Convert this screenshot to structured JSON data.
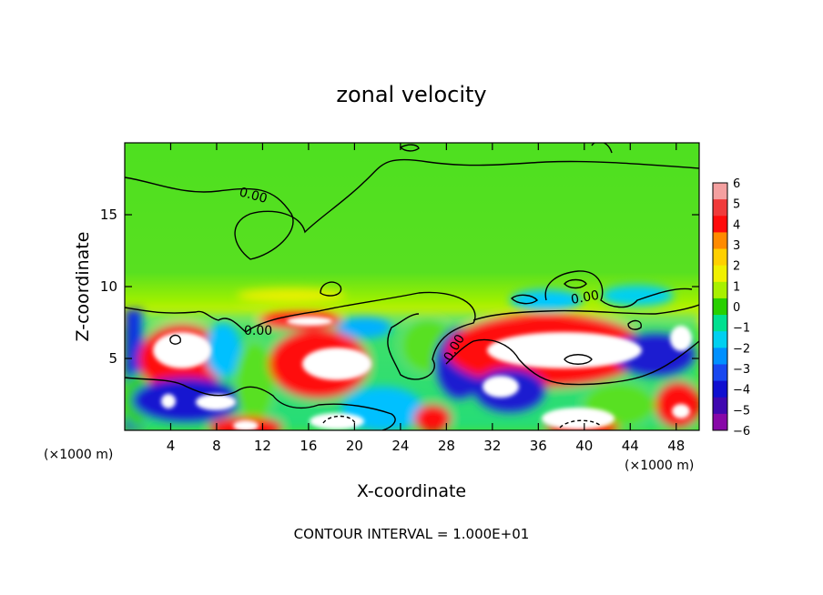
{
  "chart_data": {
    "type": "heatmap",
    "title": "zonal velocity",
    "xlabel": "X-coordinate",
    "ylabel": "Z-coordinate",
    "x_unit_left": "(×1000 m)",
    "x_unit_right": "(×1000 m)",
    "xlim": [
      0,
      50
    ],
    "ylim": [
      0,
      20
    ],
    "x_ticks": [
      "4",
      "8",
      "12",
      "16",
      "20",
      "24",
      "28",
      "32",
      "36",
      "40",
      "44",
      "48"
    ],
    "y_ticks": [
      "5",
      "10",
      "15"
    ],
    "footer": "CONTOUR INTERVAL = 1.000E+01",
    "contour_labels": [
      "0.00",
      "0.00",
      "0.00",
      "0.00"
    ],
    "colorbar": {
      "ticks": [
        "6",
        "5",
        "4",
        "3",
        "2",
        "1",
        "0",
        "−1",
        "−2",
        "−3",
        "−4",
        "−5",
        "−6"
      ],
      "colors": [
        "#f4a0a0",
        "#f03a3a",
        "#ff0a0a",
        "#ff8a00",
        "#ffd000",
        "#f0f000",
        "#a8f000",
        "#28d000",
        "#00e090",
        "#00d0f0",
        "#0090ff",
        "#1848f0",
        "#1010d0",
        "#4008b0",
        "#8808a8"
      ]
    },
    "grid": false,
    "legend": "colorbar-right"
  }
}
